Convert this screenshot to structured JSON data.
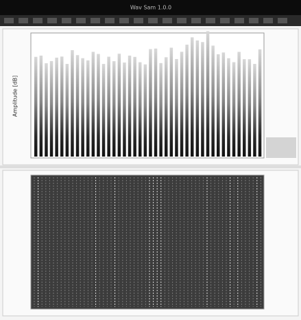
{
  "window": {
    "title": "Wav Sam 1.0.0"
  },
  "top_panel": {
    "y_axis_label": "Amplitude [dB]"
  }
}
